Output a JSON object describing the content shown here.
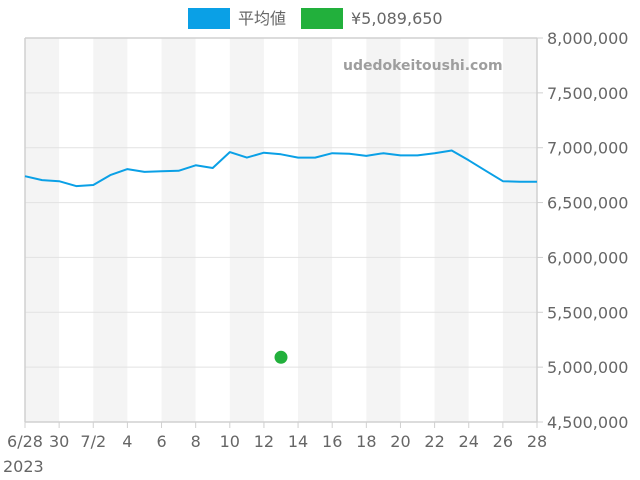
{
  "legend": {
    "items": [
      {
        "label": "平均値",
        "color": "#0aa0e6"
      },
      {
        "label": "¥5,089,650",
        "color": "#22b03c"
      }
    ]
  },
  "watermark": "udedokeitoushi.com",
  "chart_data": {
    "type": "line",
    "title": "",
    "xlabel": "",
    "ylabel": "",
    "ylim": [
      4500000,
      8000000
    ],
    "yticks": [
      "8,000,000",
      "7,500,000",
      "7,000,000",
      "6,500,000",
      "6,000,000",
      "5,500,000",
      "5,000,000",
      "4,500,000"
    ],
    "xticks": [
      "6/28",
      "30",
      "7/2",
      "4",
      "6",
      "8",
      "10",
      "12",
      "14",
      "16",
      "18",
      "20",
      "22",
      "24",
      "26",
      "28"
    ],
    "xtick_year": "2023",
    "grid": true,
    "legend_position": "top",
    "x": [
      "2023-06-28",
      "2023-06-29",
      "2023-06-30",
      "2023-07-01",
      "2023-07-02",
      "2023-07-03",
      "2023-07-04",
      "2023-07-05",
      "2023-07-06",
      "2023-07-07",
      "2023-07-08",
      "2023-07-09",
      "2023-07-10",
      "2023-07-11",
      "2023-07-12",
      "2023-07-13",
      "2023-07-14",
      "2023-07-15",
      "2023-07-16",
      "2023-07-17",
      "2023-07-18",
      "2023-07-19",
      "2023-07-20",
      "2023-07-21",
      "2023-07-22",
      "2023-07-23",
      "2023-07-24",
      "2023-07-25",
      "2023-07-26",
      "2023-07-27",
      "2023-07-28"
    ],
    "series": [
      {
        "name": "平均値",
        "color": "#0aa0e6",
        "type": "line",
        "values": [
          6740000,
          6705000,
          6695000,
          6650000,
          6660000,
          6750000,
          6805000,
          6780000,
          6785000,
          6790000,
          6840000,
          6815000,
          6960000,
          6910000,
          6955000,
          6940000,
          6910000,
          6910000,
          6950000,
          6945000,
          6925000,
          6950000,
          6930000,
          6930000,
          6950000,
          6975000,
          6885000,
          6790000,
          6695000,
          6690000,
          6690000
        ]
      },
      {
        "name": "¥5,089,650",
        "color": "#22b03c",
        "type": "scatter",
        "points": [
          {
            "x": "2023-07-13",
            "y": 5089650
          }
        ]
      }
    ]
  }
}
